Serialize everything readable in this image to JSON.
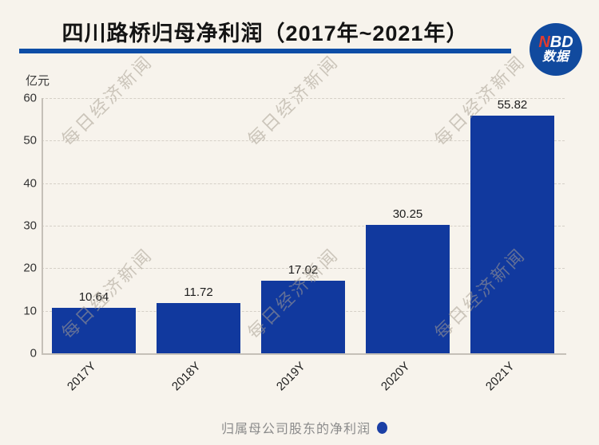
{
  "header": {
    "title": "四川路桥归母净利润（2017年~2021年）",
    "logo": {
      "accent": "N",
      "rest": "BD",
      "line2": "数据"
    }
  },
  "chart_data": {
    "type": "bar",
    "title": "四川路桥归母净利润（2017年~2021年）",
    "unit_label": "亿元",
    "categories": [
      "2017Y",
      "2018Y",
      "2019Y",
      "2020Y",
      "2021Y"
    ],
    "series": [
      {
        "name": "归属母公司股东的净利润",
        "values": [
          10.64,
          11.72,
          17.02,
          30.25,
          55.82
        ]
      }
    ],
    "value_labels": [
      "10.64",
      "11.72",
      "17.02",
      "30.25",
      "55.82"
    ],
    "ylim": [
      0,
      60
    ],
    "yticks": [
      0,
      10,
      20,
      30,
      40,
      50,
      60
    ],
    "grid": "horizontal-dashed",
    "legend_position": "bottom",
    "bar_color": "#11399e"
  },
  "legend": {
    "label": "归属母公司股东的净利润"
  },
  "watermark": {
    "text": "每日经济新闻"
  },
  "colors": {
    "background": "#f7f3ec",
    "bar": "#11399e",
    "title_line": "#0d4da6",
    "logo_circle": "#114a9e",
    "logo_accent": "#e23b2e",
    "grid": "#d5d0c7",
    "axis": "#c5c0b8",
    "legend_dot": "#1b3fa5"
  }
}
